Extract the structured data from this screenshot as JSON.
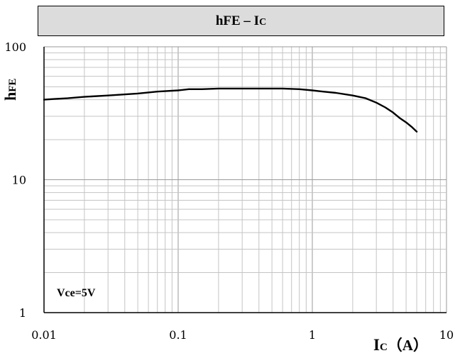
{
  "chart_data": {
    "type": "line",
    "title": {
      "main": "hFE – I",
      "sub": "C"
    },
    "xlabel": {
      "main": "I",
      "sub": "C",
      "unit": "（A）"
    },
    "ylabel": {
      "main": "h",
      "sub": "FE"
    },
    "xscale": "log",
    "yscale": "log",
    "xlim": [
      0.01,
      10
    ],
    "ylim": [
      1,
      100
    ],
    "x_tick_labels": [
      "0.01",
      "0.1",
      "1",
      "10"
    ],
    "y_tick_labels": [
      "1",
      "10",
      "100"
    ],
    "grid": true,
    "annotation": "Vce=5V",
    "series": [
      {
        "x": [
          0.01,
          0.012,
          0.015,
          0.02,
          0.03,
          0.05,
          0.07,
          0.1,
          0.12,
          0.15,
          0.2,
          0.3,
          0.5,
          0.6,
          0.8,
          1.0,
          1.2,
          1.5,
          2.0,
          2.5,
          3.0,
          3.5,
          4.0,
          4.5,
          5.0,
          5.5,
          6.0
        ],
        "y": [
          40,
          40.5,
          41,
          42,
          43,
          44.5,
          46,
          47,
          48,
          48,
          48.5,
          48.5,
          48.5,
          48.5,
          48,
          47,
          46,
          45,
          43,
          41,
          38,
          35,
          32,
          29,
          27,
          25,
          23
        ]
      }
    ]
  }
}
